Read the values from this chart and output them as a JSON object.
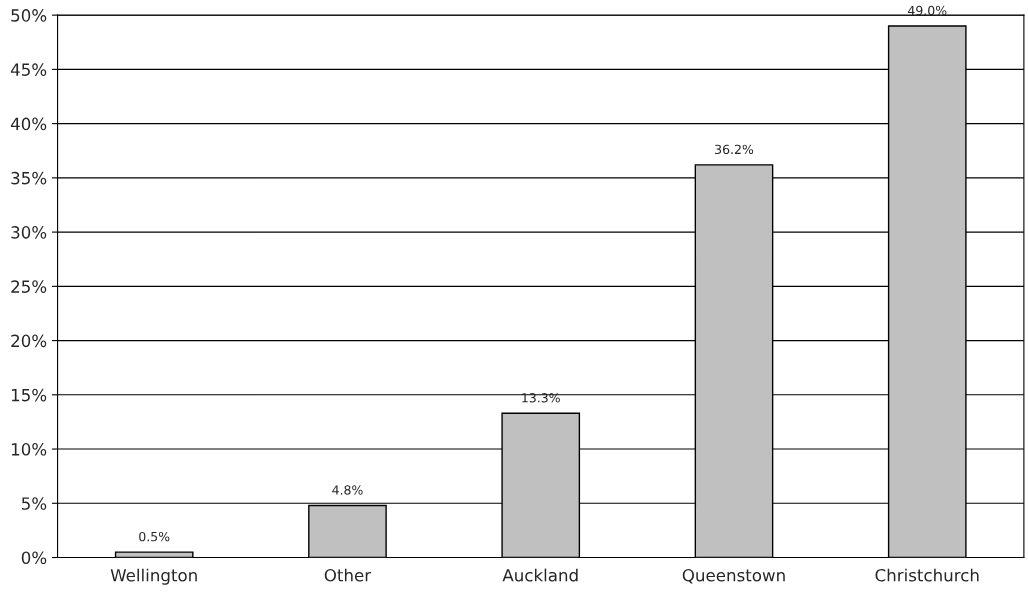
{
  "chart_data": {
    "type": "bar",
    "categories": [
      "Wellington",
      "Other",
      "Auckland",
      "Queenstown",
      "Christchurch"
    ],
    "values": [
      0.5,
      4.8,
      13.3,
      36.2,
      49.0
    ],
    "color": "#c0c0c0",
    "value_labels": [
      "0.5%",
      "4.8%",
      "13.3%",
      "36.2%",
      "49.0%"
    ],
    "ylim": [
      0,
      50
    ],
    "yticks": [
      {
        "value": 0,
        "label": "0%"
      },
      {
        "value": 5,
        "label": "5%"
      },
      {
        "value": 10,
        "label": "10%"
      },
      {
        "value": 15,
        "label": "15%"
      },
      {
        "value": 20,
        "label": "20%"
      },
      {
        "value": 25,
        "label": "25%"
      },
      {
        "value": 30,
        "label": "30%"
      },
      {
        "value": 35,
        "label": "35%"
      },
      {
        "value": 40,
        "label": "40%"
      },
      {
        "value": 45,
        "label": "45%"
      },
      {
        "value": 50,
        "label": "50%"
      }
    ],
    "grid": "y",
    "legend": false
  }
}
